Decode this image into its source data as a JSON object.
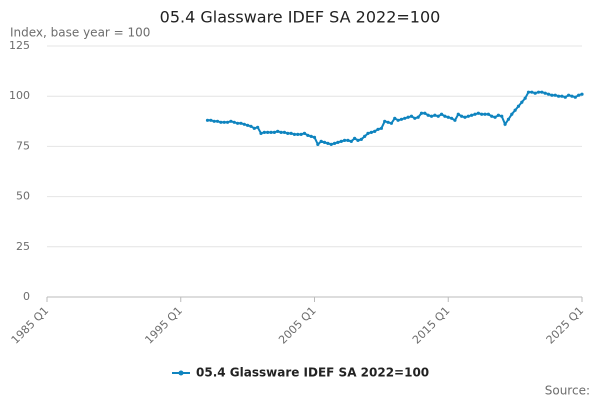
{
  "chart_data": {
    "type": "line",
    "title": "05.4 Glassware IDEF SA 2022=100",
    "subtitle": "Index, base year = 100",
    "source": "Source:",
    "x": [
      "1997 Q1",
      "1997 Q2",
      "1997 Q3",
      "1997 Q4",
      "1998 Q1",
      "1998 Q2",
      "1998 Q3",
      "1998 Q4",
      "1999 Q1",
      "1999 Q2",
      "1999 Q3",
      "1999 Q4",
      "2000 Q1",
      "2000 Q2",
      "2000 Q3",
      "2000 Q4",
      "2001 Q1",
      "2001 Q2",
      "2001 Q3",
      "2001 Q4",
      "2002 Q1",
      "2002 Q2",
      "2002 Q3",
      "2002 Q4",
      "2003 Q1",
      "2003 Q2",
      "2003 Q3",
      "2003 Q4",
      "2004 Q1",
      "2004 Q2",
      "2004 Q3",
      "2004 Q4",
      "2005 Q1",
      "2005 Q2",
      "2005 Q3",
      "2005 Q4",
      "2006 Q1",
      "2006 Q2",
      "2006 Q3",
      "2006 Q4",
      "2007 Q1",
      "2007 Q2",
      "2007 Q3",
      "2007 Q4",
      "2008 Q1",
      "2008 Q2",
      "2008 Q3",
      "2008 Q4",
      "2009 Q1",
      "2009 Q2",
      "2009 Q3",
      "2009 Q4",
      "2010 Q1",
      "2010 Q2",
      "2010 Q3",
      "2010 Q4",
      "2011 Q1",
      "2011 Q2",
      "2011 Q3",
      "2011 Q4",
      "2012 Q1",
      "2012 Q2",
      "2012 Q3",
      "2012 Q4",
      "2013 Q1",
      "2013 Q2",
      "2013 Q3",
      "2013 Q4",
      "2014 Q1",
      "2014 Q2",
      "2014 Q3",
      "2014 Q4",
      "2015 Q1",
      "2015 Q2",
      "2015 Q3",
      "2015 Q4",
      "2016 Q1",
      "2016 Q2",
      "2016 Q3",
      "2016 Q4",
      "2017 Q1",
      "2017 Q2",
      "2017 Q3",
      "2017 Q4",
      "2018 Q1",
      "2018 Q2",
      "2018 Q3",
      "2018 Q4",
      "2019 Q1",
      "2019 Q2",
      "2019 Q3",
      "2019 Q4",
      "2020 Q1",
      "2020 Q2",
      "2020 Q3",
      "2020 Q4",
      "2021 Q1",
      "2021 Q2",
      "2021 Q3",
      "2021 Q4",
      "2022 Q1",
      "2022 Q2",
      "2022 Q3",
      "2022 Q4",
      "2023 Q1",
      "2023 Q2",
      "2023 Q3",
      "2023 Q4",
      "2024 Q1",
      "2024 Q2",
      "2024 Q3",
      "2024 Q4",
      "2025 Q1"
    ],
    "series": [
      {
        "name": "05.4 Glassware IDEF SA 2022=100",
        "color": "#0f84bf",
        "values": [
          88,
          88,
          87.5,
          87.5,
          87,
          87,
          87,
          87.5,
          87,
          86.5,
          86.5,
          86,
          85.5,
          85,
          84,
          84.5,
          81.5,
          82,
          82,
          82,
          82,
          82.5,
          82,
          82,
          81.5,
          81.5,
          81,
          81,
          81,
          81.5,
          80.5,
          80,
          79.5,
          76,
          77.5,
          77,
          76.5,
          76,
          76.5,
          77,
          77.5,
          78,
          78,
          77.5,
          79,
          78,
          78.5,
          80,
          81.5,
          82,
          82.5,
          83.5,
          84,
          87.5,
          87,
          86.5,
          89,
          88,
          88.5,
          89,
          89.5,
          90,
          89,
          89.5,
          91.5,
          91.5,
          90.5,
          90,
          90.5,
          90,
          91,
          90,
          89.5,
          89,
          88,
          91,
          90,
          89.5,
          90,
          90.5,
          91,
          91.5,
          91,
          91,
          91,
          90,
          89.5,
          90.5,
          90,
          86,
          88.5,
          91,
          93,
          95,
          97,
          99,
          102,
          102,
          101.5,
          102,
          102,
          101.5,
          101,
          100.5,
          100.5,
          100,
          100,
          99.5,
          100.5,
          100,
          99.5,
          100.5,
          101
        ]
      }
    ],
    "xlim": [
      "1985 Q1",
      "2025 Q1"
    ],
    "xticks": [
      "1985 Q1",
      "1995 Q1",
      "2005 Q1",
      "2015 Q1",
      "2025 Q1"
    ],
    "ylim": [
      0,
      125
    ],
    "yticks": [
      0,
      25,
      50,
      75,
      100,
      125
    ],
    "grid": true,
    "legend": "bottom"
  }
}
